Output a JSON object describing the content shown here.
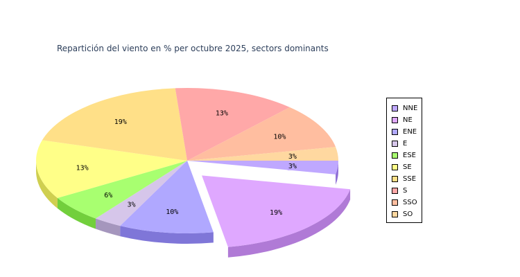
{
  "chart_data": {
    "type": "pie",
    "title": "Repartición del viento en % per octubre 2025, sectors dominants",
    "legend_position": "right",
    "style": "3d-exploded",
    "exploded_slice": "NE",
    "slices": [
      {
        "label": "NNE",
        "value": 3,
        "value_label": "3%",
        "color": "#bfa8ff",
        "side": "#8e6ed6"
      },
      {
        "label": "NE",
        "value": 19,
        "value_label": "19%",
        "color": "#dfa8ff",
        "side": "#b07ad6"
      },
      {
        "label": "ENE",
        "value": 10,
        "value_label": "10%",
        "color": "#b0a8ff",
        "side": "#7f76d8"
      },
      {
        "label": "E",
        "value": 3,
        "value_label": "3%",
        "color": "#d6c6ea",
        "side": "#a596bd"
      },
      {
        "label": "ESE",
        "value": 6,
        "value_label": "6%",
        "color": "#a8ff70",
        "side": "#72cf3c"
      },
      {
        "label": "SE",
        "value": 13,
        "value_label": "13%",
        "color": "#ffff88",
        "side": "#cfcf50"
      },
      {
        "label": "SSE",
        "value": 19,
        "value_label": "19%",
        "color": "#ffe088",
        "side": "#d1b052"
      },
      {
        "label": "S",
        "value": 13,
        "value_label": "13%",
        "color": "#ffa8a8",
        "side": "#d47a7a"
      },
      {
        "label": "SSO",
        "value": 10,
        "value_label": "10%",
        "color": "#ffbea0",
        "side": "#d6906c"
      },
      {
        "label": "SO",
        "value": 3,
        "value_label": "3%",
        "color": "#ffd8a0",
        "side": "#d6aa6c"
      }
    ]
  }
}
